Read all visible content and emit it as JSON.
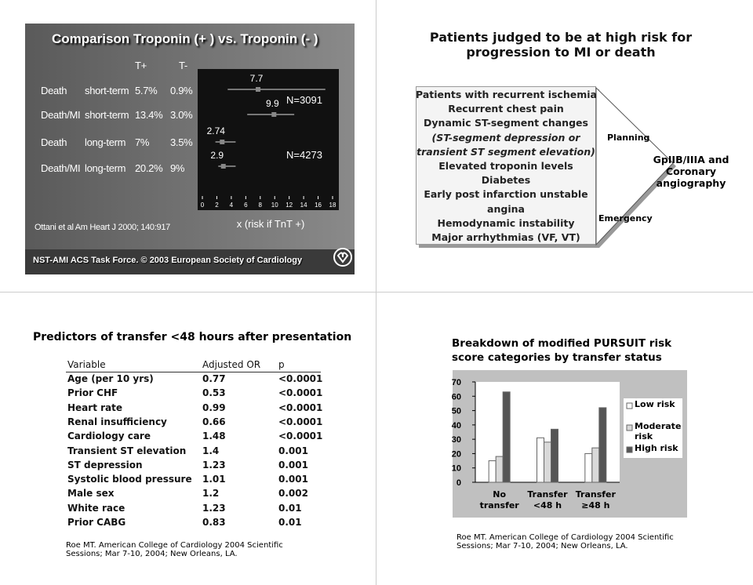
{
  "slides": [
    {
      "title": "Comparison Troponin (+ ) vs. Troponin (- )",
      "columns": [
        "T+",
        "T-"
      ],
      "rows": [
        [
          "Death",
          "short-term",
          "5.7%",
          "0.9%"
        ],
        [
          "Death/MI",
          "short-term",
          "13.4%",
          "3.0%"
        ],
        [
          "Death",
          "long-term",
          "7%",
          "3.5%"
        ],
        [
          "Death/MI",
          "long-term",
          "20.2%",
          "9%"
        ]
      ],
      "citation": "Ottani et al Am Heart J 2000; 140:917",
      "footer": "NST-AMI ACS Task Force. © 2003 European Society of Cardiology"
    },
    {
      "title": "Patients judged to be at high risk for progression to MI or death",
      "criteria": [
        "Patients with recurrent ischemia",
        "Recurrent chest pain",
        "Dynamic ST-segment changes",
        "(ST-segment depression or",
        "transient ST segment elevation)",
        "Elevated troponin levels",
        "Diabetes",
        "Early post infarction unstable",
        "angina",
        "Hemodynamic instability",
        "Major arrhythmias (VF, VT)"
      ],
      "planning": "Planning",
      "emergency": "Emergency",
      "outcome": "GpIIB/IIIA and Coronary angiography"
    },
    {
      "title": "Predictors of transfer <48 hours after presentation",
      "table": {
        "header": [
          "Variable",
          "Adjusted OR",
          "p"
        ],
        "rows": [
          [
            "Age (per 10 yrs)",
            "0.77",
            "<0.0001"
          ],
          [
            "Prior CHF",
            "0.53",
            "<0.0001"
          ],
          [
            "Heart rate",
            "0.99",
            "<0.0001"
          ],
          [
            "Renal insufficiency",
            "0.66",
            "<0.0001"
          ],
          [
            "Cardiology care",
            "1.48",
            "<0.0001"
          ],
          [
            "Transient ST elevation",
            "1.4",
            "0.001"
          ],
          [
            "ST depression",
            "1.23",
            "0.001"
          ],
          [
            "Systolic blood pressure",
            "1.01",
            "0.001"
          ],
          [
            "Male sex",
            "1.2",
            "0.002"
          ],
          [
            "White race",
            "1.23",
            "0.01"
          ],
          [
            "Prior CABG",
            "0.83",
            "0.01"
          ]
        ]
      },
      "citation": "Roe MT. American College of Cardiology 2004 Scientific Sessions; Mar 7-10, 2004; New Orleans, LA."
    },
    {
      "citation": "Roe MT. American College of Cardiology 2004 Scientific Sessions; Mar 7-10, 2004; New Orleans, LA."
    }
  ],
  "chart_data": [
    {
      "type": "forest",
      "values": [
        7.7,
        9.9,
        2.74,
        2.9
      ],
      "ci_low": [
        3.5,
        6.2,
        1.8,
        2.2
      ],
      "ci_high": [
        17,
        12.7,
        4.6,
        4.6
      ],
      "xlim": [
        0,
        18
      ],
      "xticks": [
        0,
        2,
        4,
        6,
        8,
        10,
        12,
        14,
        16,
        18
      ],
      "xlabel": "x (risk if TnT +)",
      "annotations": [
        "N=3091",
        "N=4273"
      ],
      "color": "#ffffff"
    },
    {
      "type": "bar",
      "title": "Breakdown of modified PURSUIT risk score categories by transfer status",
      "categories": [
        "No transfer",
        "Transfer <48 h",
        "Transfer ≥48 h"
      ],
      "series": [
        {
          "name": "Low risk",
          "color": "#ffffff",
          "values": [
            15,
            31,
            20
          ]
        },
        {
          "name": "Moderate risk",
          "color": "#d9d9d9",
          "values": [
            18,
            28,
            24
          ]
        },
        {
          "name": "High risk",
          "color": "#555555",
          "values": [
            63,
            37,
            52
          ]
        }
      ],
      "ylim": [
        0,
        70
      ],
      "yticks": [
        0,
        10,
        20,
        30,
        40,
        50,
        60,
        70
      ]
    }
  ]
}
